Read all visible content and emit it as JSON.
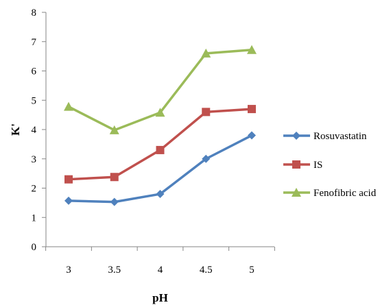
{
  "chart_data": {
    "type": "line",
    "title": "",
    "xlabel": "pH",
    "ylabel": "K'",
    "x": [
      3,
      3.5,
      4,
      4.5,
      5
    ],
    "x_tick_labels": [
      "3",
      "3.5",
      "4",
      "4.5",
      "5"
    ],
    "ylim": [
      0,
      8
    ],
    "y_ticks": [
      0,
      1,
      2,
      3,
      4,
      5,
      6,
      7,
      8
    ],
    "y_tick_labels": [
      "0",
      "1",
      "2",
      "3",
      "4",
      "5",
      "6",
      "7",
      "8"
    ],
    "grid": false,
    "legend_position": "right",
    "series": [
      {
        "name": "Rosuvastatin",
        "values": [
          1.57,
          1.53,
          1.8,
          3.0,
          3.8
        ],
        "color": "#4F81BD",
        "marker": "diamond"
      },
      {
        "name": "IS",
        "values": [
          2.3,
          2.38,
          3.3,
          4.6,
          4.7
        ],
        "color": "#C0504D",
        "marker": "square"
      },
      {
        "name": "Fenofibric acid",
        "values": [
          4.78,
          3.98,
          4.58,
          6.6,
          6.72
        ],
        "color": "#9BBB59",
        "marker": "triangle"
      }
    ]
  }
}
